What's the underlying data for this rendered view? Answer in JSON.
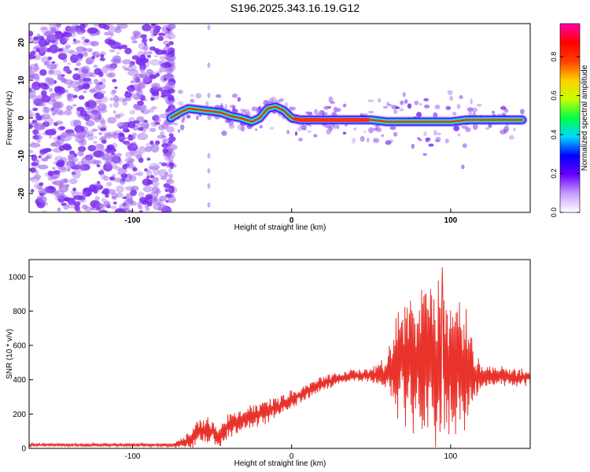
{
  "title": "S196.2025.343.16.19.G12",
  "colors": {
    "snr_line": "#e8322a",
    "speckle": "#a46cf0",
    "band_low": "#3a10ff",
    "band_mid": "#21d4ff",
    "band_hi": "#ff2a1a",
    "axis": "#000000"
  },
  "chart_data": [
    {
      "type": "heatmap",
      "name": "spectrogram",
      "xlabel": "Height of straight line (km)",
      "ylabel": "Frequency (Hz)",
      "xlim": [
        -165,
        150
      ],
      "ylim": [
        -25,
        25
      ],
      "xticks": [
        -100,
        0,
        100
      ],
      "yticks": [
        -20,
        -10,
        0,
        10,
        20
      ],
      "noise_region_x": [
        -165,
        -75
      ],
      "ridge_x": [
        -76,
        -70,
        -65,
        -55,
        -45,
        -38,
        -32,
        -25,
        -20,
        -15,
        -10,
        -5,
        0,
        5,
        15,
        30,
        50,
        60,
        70,
        80,
        90,
        100,
        110,
        120,
        130,
        145
      ],
      "ridge_freq": [
        0,
        1.5,
        2.5,
        2,
        1.5,
        0.5,
        0,
        -1,
        0,
        2.5,
        3,
        2,
        0,
        -0.5,
        -0.5,
        -0.5,
        -0.5,
        -1,
        -1,
        -1,
        -1,
        -1,
        -0.5,
        -0.5,
        -0.5,
        -0.5
      ],
      "colorbar": {
        "label": "Normalized spectral amplitude",
        "ticks": [
          "0.0",
          "0.2",
          "0.4",
          "0.6",
          "0.8"
        ],
        "tick_values": [
          0.0,
          0.2,
          0.4,
          0.6,
          0.8
        ],
        "range": [
          0,
          0.97
        ],
        "colormap": [
          "#ffffff",
          "#c79cff",
          "#6a00ff",
          "#0000ff",
          "#00d8ff",
          "#00ff44",
          "#c8ff00",
          "#ffd000",
          "#ff4000",
          "#ff0000",
          "#ff00a8"
        ]
      }
    },
    {
      "type": "line",
      "name": "snr",
      "xlabel": "Height of straight line (km)",
      "ylabel": "SNR (10 * v/v)",
      "xlim": [
        -165,
        150
      ],
      "ylim": [
        0,
        1100
      ],
      "xticks": [
        -100,
        0,
        100
      ],
      "yticks": [
        0,
        200,
        400,
        600,
        800,
        1000
      ],
      "series": [
        {
          "name": "SNR",
          "x": [
            -165,
            -150,
            -130,
            -110,
            -90,
            -80,
            -75,
            -70,
            -65,
            -60,
            -55,
            -50,
            -45,
            -40,
            -35,
            -30,
            -25,
            -20,
            -15,
            -10,
            -5,
            0,
            10,
            20,
            30,
            40,
            50,
            55,
            60,
            63,
            66,
            70,
            75,
            80,
            85,
            90,
            95,
            100,
            105,
            110,
            115,
            120,
            130,
            140,
            150
          ],
          "y": [
            20,
            20,
            20,
            20,
            20,
            20,
            20,
            30,
            50,
            80,
            110,
            100,
            60,
            130,
            150,
            170,
            190,
            200,
            220,
            240,
            260,
            290,
            330,
            380,
            410,
            425,
            420,
            430,
            440,
            480,
            500,
            510,
            500,
            520,
            510,
            500,
            490,
            480,
            470,
            450,
            430,
            420,
            420,
            410,
            415
          ],
          "amplitude": [
            8,
            8,
            8,
            8,
            8,
            8,
            10,
            20,
            40,
            60,
            80,
            60,
            50,
            70,
            60,
            60,
            60,
            60,
            60,
            50,
            50,
            50,
            40,
            40,
            30,
            30,
            40,
            60,
            90,
            200,
            280,
            320,
            350,
            380,
            400,
            430,
            400,
            360,
            330,
            300,
            120,
            60,
            50,
            50,
            50
          ]
        }
      ]
    }
  ]
}
